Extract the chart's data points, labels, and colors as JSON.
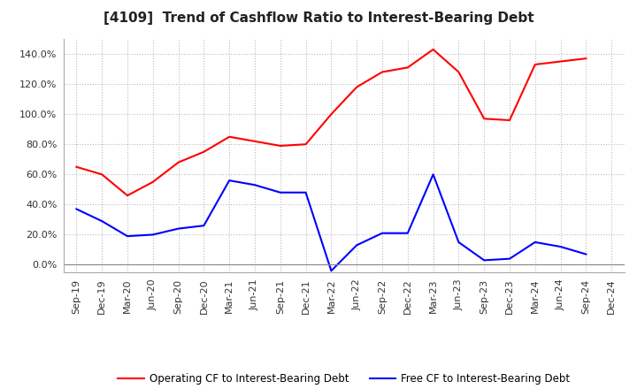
{
  "title": "[4109]  Trend of Cashflow Ratio to Interest-Bearing Debt",
  "x_labels": [
    "Sep-19",
    "Dec-19",
    "Mar-20",
    "Jun-20",
    "Sep-20",
    "Dec-20",
    "Mar-21",
    "Jun-21",
    "Sep-21",
    "Dec-21",
    "Mar-22",
    "Jun-22",
    "Sep-22",
    "Dec-22",
    "Mar-23",
    "Jun-23",
    "Sep-23",
    "Dec-23",
    "Mar-24",
    "Jun-24",
    "Sep-24",
    "Dec-24"
  ],
  "operating_cf": [
    0.65,
    0.6,
    0.46,
    0.55,
    0.68,
    0.75,
    0.85,
    0.82,
    0.79,
    0.8,
    1.0,
    1.18,
    1.28,
    1.31,
    1.43,
    1.28,
    0.97,
    0.96,
    1.33,
    1.35,
    1.37,
    null
  ],
  "free_cf": [
    0.37,
    0.29,
    0.19,
    0.2,
    0.24,
    0.26,
    0.56,
    0.53,
    0.48,
    0.48,
    -0.04,
    0.13,
    0.21,
    0.21,
    0.6,
    0.15,
    0.03,
    0.04,
    0.15,
    0.12,
    0.07,
    null
  ],
  "operating_color": "#FF0000",
  "free_color": "#0000FF",
  "background_color": "#FFFFFF",
  "grid_color": "#AAAAAA",
  "ylim": [
    -0.05,
    1.5
  ],
  "yticks": [
    0.0,
    0.2,
    0.4,
    0.6,
    0.8,
    1.0,
    1.2,
    1.4
  ],
  "legend_operating": "Operating CF to Interest-Bearing Debt",
  "legend_free": "Free CF to Interest-Bearing Debt",
  "title_fontsize": 11,
  "tick_fontsize": 8
}
